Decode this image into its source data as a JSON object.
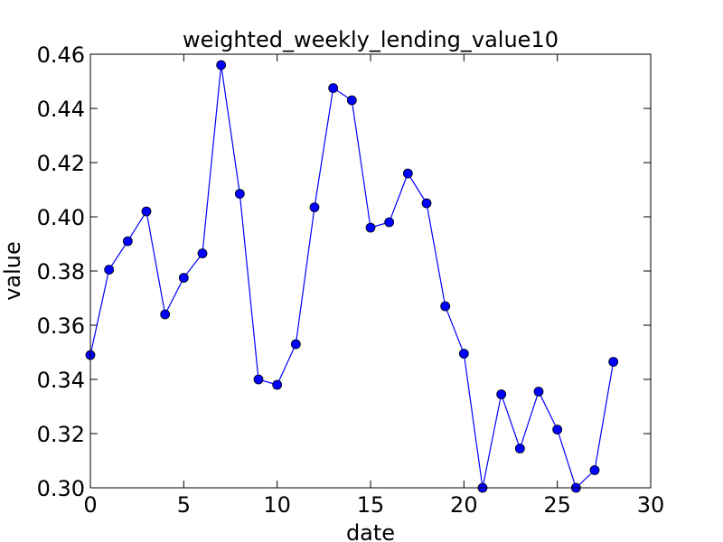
{
  "chart_data": {
    "type": "line",
    "title": "weighted_weekly_lending_value10",
    "xlabel": "date",
    "ylabel": "value",
    "xlim": [
      0,
      30
    ],
    "ylim": [
      0.3,
      0.46
    ],
    "x_ticks": [
      "0",
      "5",
      "10",
      "15",
      "20",
      "25",
      "30"
    ],
    "y_ticks": [
      "0.30",
      "0.32",
      "0.34",
      "0.36",
      "0.38",
      "0.40",
      "0.42",
      "0.44",
      "0.46"
    ],
    "grid": false,
    "series": [
      {
        "color": "#0000ff",
        "marker": "circle",
        "x": [
          0,
          1,
          2,
          3,
          4,
          5,
          6,
          7,
          8,
          9,
          10,
          11,
          12,
          13,
          14,
          15,
          16,
          17,
          18,
          19,
          20,
          21,
          22,
          23,
          24,
          25,
          26,
          27,
          28
        ],
        "y": [
          0.349,
          0.3805,
          0.391,
          0.402,
          0.364,
          0.3775,
          0.3865,
          0.456,
          0.4085,
          0.34,
          0.338,
          0.353,
          0.4035,
          0.4475,
          0.443,
          0.396,
          0.398,
          0.416,
          0.405,
          0.367,
          0.3495,
          0.3,
          0.3345,
          0.3145,
          0.3355,
          0.3215,
          0.3,
          0.3065,
          0.3465
        ]
      }
    ]
  }
}
